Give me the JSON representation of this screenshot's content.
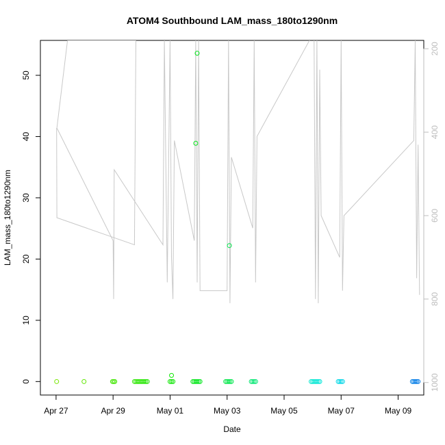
{
  "chart_data": {
    "type": "scatter",
    "title": "ATOM4 Southbound LAM_mass_180to1290nm",
    "xlabel": "Date",
    "ylabel": "LAM_mass_180to1290nm",
    "x_ticks": [
      "Apr 27",
      "Apr 29",
      "May 01",
      "May 03",
      "May 05",
      "May 07",
      "May 09"
    ],
    "x_tick_days": [
      0,
      2,
      4,
      6,
      8,
      10,
      12
    ],
    "xlim_days": [
      -0.55,
      12.9
    ],
    "ylim": [
      -2.2,
      55.7
    ],
    "y_ticks": [
      0,
      10,
      20,
      30,
      40,
      50
    ],
    "right_axis": {
      "label_color": "#bdbdbd",
      "ticks": [
        200,
        400,
        600,
        800,
        1000
      ],
      "reversed": true,
      "ylim": [
        1030,
        180
      ]
    },
    "series": [
      {
        "color_scale": "time (green to blue)",
        "points": [
          {
            "day": 0.02,
            "y": 0
          },
          {
            "day": 0.98,
            "y": 0
          },
          {
            "day": 1.98,
            "y": 0
          },
          {
            "day": 2.02,
            "y": 0
          },
          {
            "day": 2.06,
            "y": 0
          },
          {
            "day": 2.75,
            "y": 0
          },
          {
            "day": 2.8,
            "y": 0
          },
          {
            "day": 2.85,
            "y": 0
          },
          {
            "day": 2.9,
            "y": 0
          },
          {
            "day": 2.95,
            "y": 0
          },
          {
            "day": 3.0,
            "y": 0
          },
          {
            "day": 3.05,
            "y": 0
          },
          {
            "day": 3.1,
            "y": 0
          },
          {
            "day": 3.15,
            "y": 0
          },
          {
            "day": 3.2,
            "y": 0
          },
          {
            "day": 4.0,
            "y": 0
          },
          {
            "day": 4.05,
            "y": 0
          },
          {
            "day": 4.1,
            "y": 0
          },
          {
            "day": 4.05,
            "y": 1.0
          },
          {
            "day": 4.8,
            "y": 0
          },
          {
            "day": 4.85,
            "y": 0
          },
          {
            "day": 4.9,
            "y": 0
          },
          {
            "day": 4.95,
            "y": 0
          },
          {
            "day": 5.0,
            "y": 0
          },
          {
            "day": 5.05,
            "y": 0
          },
          {
            "day": 4.9,
            "y": 38.9
          },
          {
            "day": 4.95,
            "y": 53.6
          },
          {
            "day": 5.95,
            "y": 0
          },
          {
            "day": 6.0,
            "y": 0
          },
          {
            "day": 6.05,
            "y": 0
          },
          {
            "day": 6.1,
            "y": 0
          },
          {
            "day": 6.15,
            "y": 0
          },
          {
            "day": 6.08,
            "y": 22.2
          },
          {
            "day": 6.85,
            "y": 0
          },
          {
            "day": 6.9,
            "y": 0
          },
          {
            "day": 6.95,
            "y": 0
          },
          {
            "day": 7.0,
            "y": 0
          },
          {
            "day": 8.95,
            "y": 0
          },
          {
            "day": 9.0,
            "y": 0
          },
          {
            "day": 9.05,
            "y": 0
          },
          {
            "day": 9.1,
            "y": 0
          },
          {
            "day": 9.15,
            "y": 0
          },
          {
            "day": 9.2,
            "y": 0
          },
          {
            "day": 9.25,
            "y": 0
          },
          {
            "day": 9.9,
            "y": 0
          },
          {
            "day": 9.95,
            "y": 0
          },
          {
            "day": 10.0,
            "y": 0
          },
          {
            "day": 10.05,
            "y": 0
          },
          {
            "day": 12.5,
            "y": 0
          },
          {
            "day": 12.55,
            "y": 0
          },
          {
            "day": 12.6,
            "y": 0
          },
          {
            "day": 12.65,
            "y": 0
          },
          {
            "day": 12.7,
            "y": 0
          }
        ]
      },
      {
        "axis": "right",
        "color": "#c8c8c8",
        "type": "line",
        "points": [
          {
            "day": 0.02,
            "y": 390
          },
          {
            "day": 0.03,
            "y": 605
          },
          {
            "day": 2.75,
            "y": 670
          },
          {
            "day": 2.8,
            "y": 180
          },
          {
            "day": 1.5,
            "y": 180
          },
          {
            "day": 0.4,
            "y": 180
          },
          {
            "day": 0.03,
            "y": 390
          },
          {
            "day": 2.0,
            "y": 660
          },
          {
            "day": 2.02,
            "y": 800
          },
          {
            "day": 2.04,
            "y": 490
          },
          {
            "day": 3.75,
            "y": 670
          },
          {
            "day": 3.8,
            "y": 180
          },
          {
            "day": 3.9,
            "y": 760
          },
          {
            "day": 4.0,
            "y": 180
          },
          {
            "day": 4.05,
            "y": 700
          },
          {
            "day": 4.1,
            "y": 800
          },
          {
            "day": 4.15,
            "y": 420
          },
          {
            "day": 4.85,
            "y": 660
          },
          {
            "day": 4.9,
            "y": 180
          },
          {
            "day": 4.95,
            "y": 760
          },
          {
            "day": 5.0,
            "y": 180
          },
          {
            "day": 5.05,
            "y": 780
          },
          {
            "day": 6.0,
            "y": 780
          },
          {
            "day": 6.05,
            "y": 180
          },
          {
            "day": 6.1,
            "y": 810
          },
          {
            "day": 6.15,
            "y": 460
          },
          {
            "day": 6.9,
            "y": 630
          },
          {
            "day": 6.95,
            "y": 180
          },
          {
            "day": 7.0,
            "y": 760
          },
          {
            "day": 7.05,
            "y": 410
          },
          {
            "day": 9.05,
            "y": 160
          },
          {
            "day": 9.1,
            "y": 800
          },
          {
            "day": 9.15,
            "y": 180
          },
          {
            "day": 9.2,
            "y": 810
          },
          {
            "day": 9.25,
            "y": 250
          },
          {
            "day": 9.3,
            "y": 600
          },
          {
            "day": 9.95,
            "y": 700
          },
          {
            "day": 10.0,
            "y": 180
          },
          {
            "day": 10.05,
            "y": 780
          },
          {
            "day": 10.1,
            "y": 600
          },
          {
            "day": 12.55,
            "y": 420
          },
          {
            "day": 12.6,
            "y": 180
          },
          {
            "day": 12.65,
            "y": 750
          },
          {
            "day": 12.7,
            "y": 430
          },
          {
            "day": 12.75,
            "y": 790
          }
        ]
      }
    ],
    "grid": false,
    "legend": "none"
  }
}
